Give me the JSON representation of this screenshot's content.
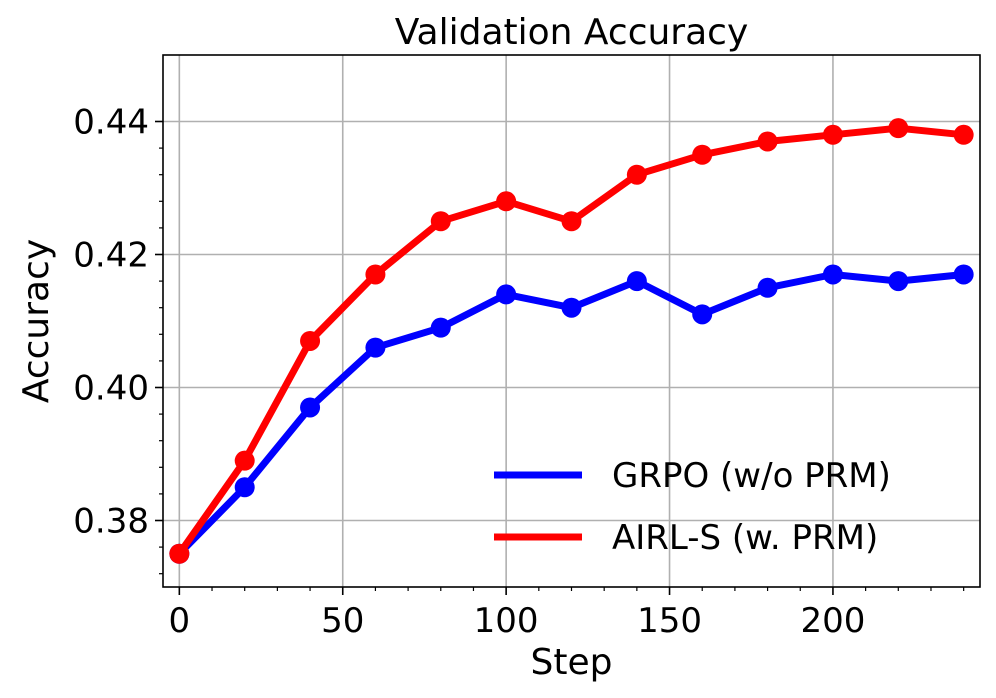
{
  "chart_data": {
    "type": "line",
    "title": "Validation Accuracy",
    "xlabel": "Step",
    "ylabel": "Accuracy",
    "xlim": [
      -5,
      245
    ],
    "ylim": [
      0.37,
      0.45
    ],
    "xticks": [
      0,
      50,
      100,
      150,
      200
    ],
    "xtick_labels": [
      "0",
      "50",
      "100",
      "150",
      "200"
    ],
    "yticks": [
      0.38,
      0.4,
      0.42,
      0.44
    ],
    "ytick_labels": [
      "0.38",
      "0.40",
      "0.42",
      "0.44"
    ],
    "grid": true,
    "legend_position": "lower-right",
    "x": [
      0,
      20,
      40,
      60,
      80,
      100,
      120,
      140,
      160,
      180,
      200,
      220,
      240
    ],
    "series": [
      {
        "name": "GRPO (w/o PRM)",
        "color": "#0000ff",
        "values": [
          0.375,
          0.385,
          0.397,
          0.406,
          0.409,
          0.414,
          0.412,
          0.416,
          0.411,
          0.415,
          0.417,
          0.416,
          0.417
        ]
      },
      {
        "name": "AIRL-S (w. PRM)",
        "color": "#ff0000",
        "values": [
          0.375,
          0.389,
          0.407,
          0.417,
          0.425,
          0.428,
          0.425,
          0.432,
          0.435,
          0.437,
          0.438,
          0.439,
          0.438
        ]
      }
    ]
  }
}
